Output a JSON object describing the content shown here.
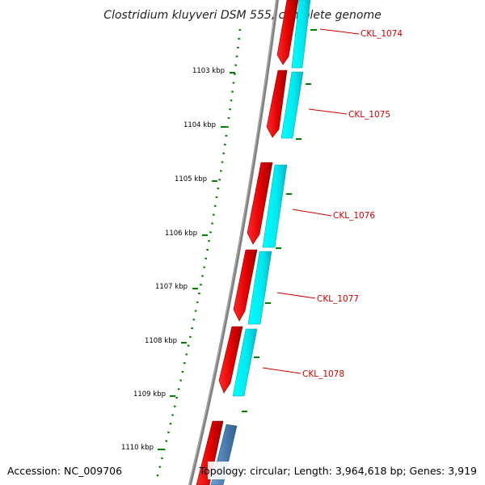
{
  "title": "Clostridium kluyveri DSM 555, complete genome",
  "accession": "Accession: NC_009706",
  "topology": "Topology: circular; Length: 3,964,618 bp; Genes: 3,919",
  "scale_labels": [
    "1103 kbp",
    "1104 kbp",
    "1105 kbp",
    "1106 kbp",
    "1107 kbp",
    "1108 kbp",
    "1109 kbp",
    "1110 kbp"
  ],
  "genes": [
    "CKL_1074",
    "CKL_1075",
    "CKL_1076",
    "CKL_1077",
    "CKL_1078"
  ],
  "colors": {
    "forward_gene": "#ff0000",
    "cds": "#00ffff",
    "other_cds": "#4a7fb5",
    "backbone": "#808080",
    "ticks": "#008000",
    "label_line": "#cc0000"
  }
}
